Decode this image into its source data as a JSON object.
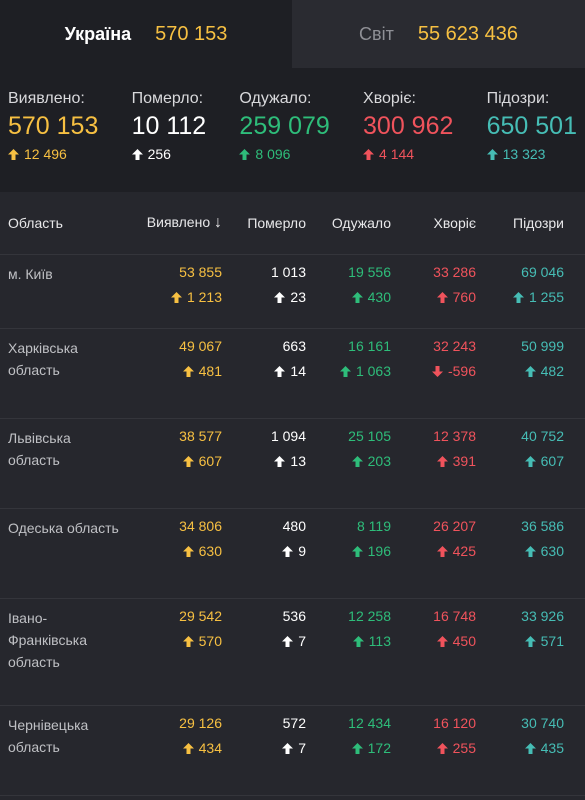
{
  "tabs": [
    {
      "label": "Україна",
      "value": "570 153",
      "active": true
    },
    {
      "label": "Світ",
      "value": "55 623 436",
      "active": false
    }
  ],
  "summary": [
    {
      "label": "Виявлено:",
      "value": "570 153",
      "delta": "12 496",
      "dir": "up",
      "color": "yellow"
    },
    {
      "label": "Померло:",
      "value": "10 112",
      "delta": "256",
      "dir": "up",
      "color": "white"
    },
    {
      "label": "Одужало:",
      "value": "259 079",
      "delta": "8 096",
      "dir": "up",
      "color": "green"
    },
    {
      "label": "Хворіє:",
      "value": "300 962",
      "delta": "4 144",
      "dir": "up",
      "color": "red"
    },
    {
      "label": "Підозри:",
      "value": "650 501",
      "delta": "13 323",
      "dir": "up",
      "color": "teal"
    }
  ],
  "table": {
    "headers": {
      "region": "Область",
      "detected": "Виявлено",
      "sort_icon": "↓",
      "died": "Померло",
      "recovered": "Одужало",
      "sick": "Хворіє",
      "suspected": "Підозри"
    },
    "rows": [
      {
        "region": "м. Київ",
        "detected": "53 855",
        "detected_d": "1 213",
        "died": "1 013",
        "died_d": "23",
        "recovered": "19 556",
        "recovered_d": "430",
        "sick": "33 286",
        "sick_d": "760",
        "sick_dir": "up",
        "suspected": "69 046",
        "suspected_d": "1 255"
      },
      {
        "region": "Харківська область",
        "detected": "49 067",
        "detected_d": "481",
        "died": "663",
        "died_d": "14",
        "recovered": "16 161",
        "recovered_d": "1 063",
        "sick": "32 243",
        "sick_d": "-596",
        "sick_dir": "down",
        "suspected": "50 999",
        "suspected_d": "482"
      },
      {
        "region": "Львівська область",
        "detected": "38 577",
        "detected_d": "607",
        "died": "1 094",
        "died_d": "13",
        "recovered": "25 105",
        "recovered_d": "203",
        "sick": "12 378",
        "sick_d": "391",
        "sick_dir": "up",
        "suspected": "40 752",
        "suspected_d": "607"
      },
      {
        "region": "Одеська область",
        "detected": "34 806",
        "detected_d": "630",
        "died": "480",
        "died_d": "9",
        "recovered": "8 119",
        "recovered_d": "196",
        "sick": "26 207",
        "sick_d": "425",
        "sick_dir": "up",
        "suspected": "36 586",
        "suspected_d": "630"
      },
      {
        "region": "Івано-Франківська область",
        "detected": "29 542",
        "detected_d": "570",
        "died": "536",
        "died_d": "7",
        "recovered": "12 258",
        "recovered_d": "113",
        "sick": "16 748",
        "sick_d": "450",
        "sick_dir": "up",
        "suspected": "33 926",
        "suspected_d": "571"
      },
      {
        "region": "Чернівецька область",
        "detected": "29 126",
        "detected_d": "434",
        "died": "572",
        "died_d": "7",
        "recovered": "12 434",
        "recovered_d": "172",
        "sick": "16 120",
        "sick_d": "255",
        "sick_dir": "up",
        "suspected": "30 740",
        "suspected_d": "435"
      }
    ]
  },
  "colors": {
    "yellow": "#f7c042",
    "white": "#ffffff",
    "green": "#2ebd7a",
    "red": "#f0535c",
    "teal": "#46bdb5"
  }
}
